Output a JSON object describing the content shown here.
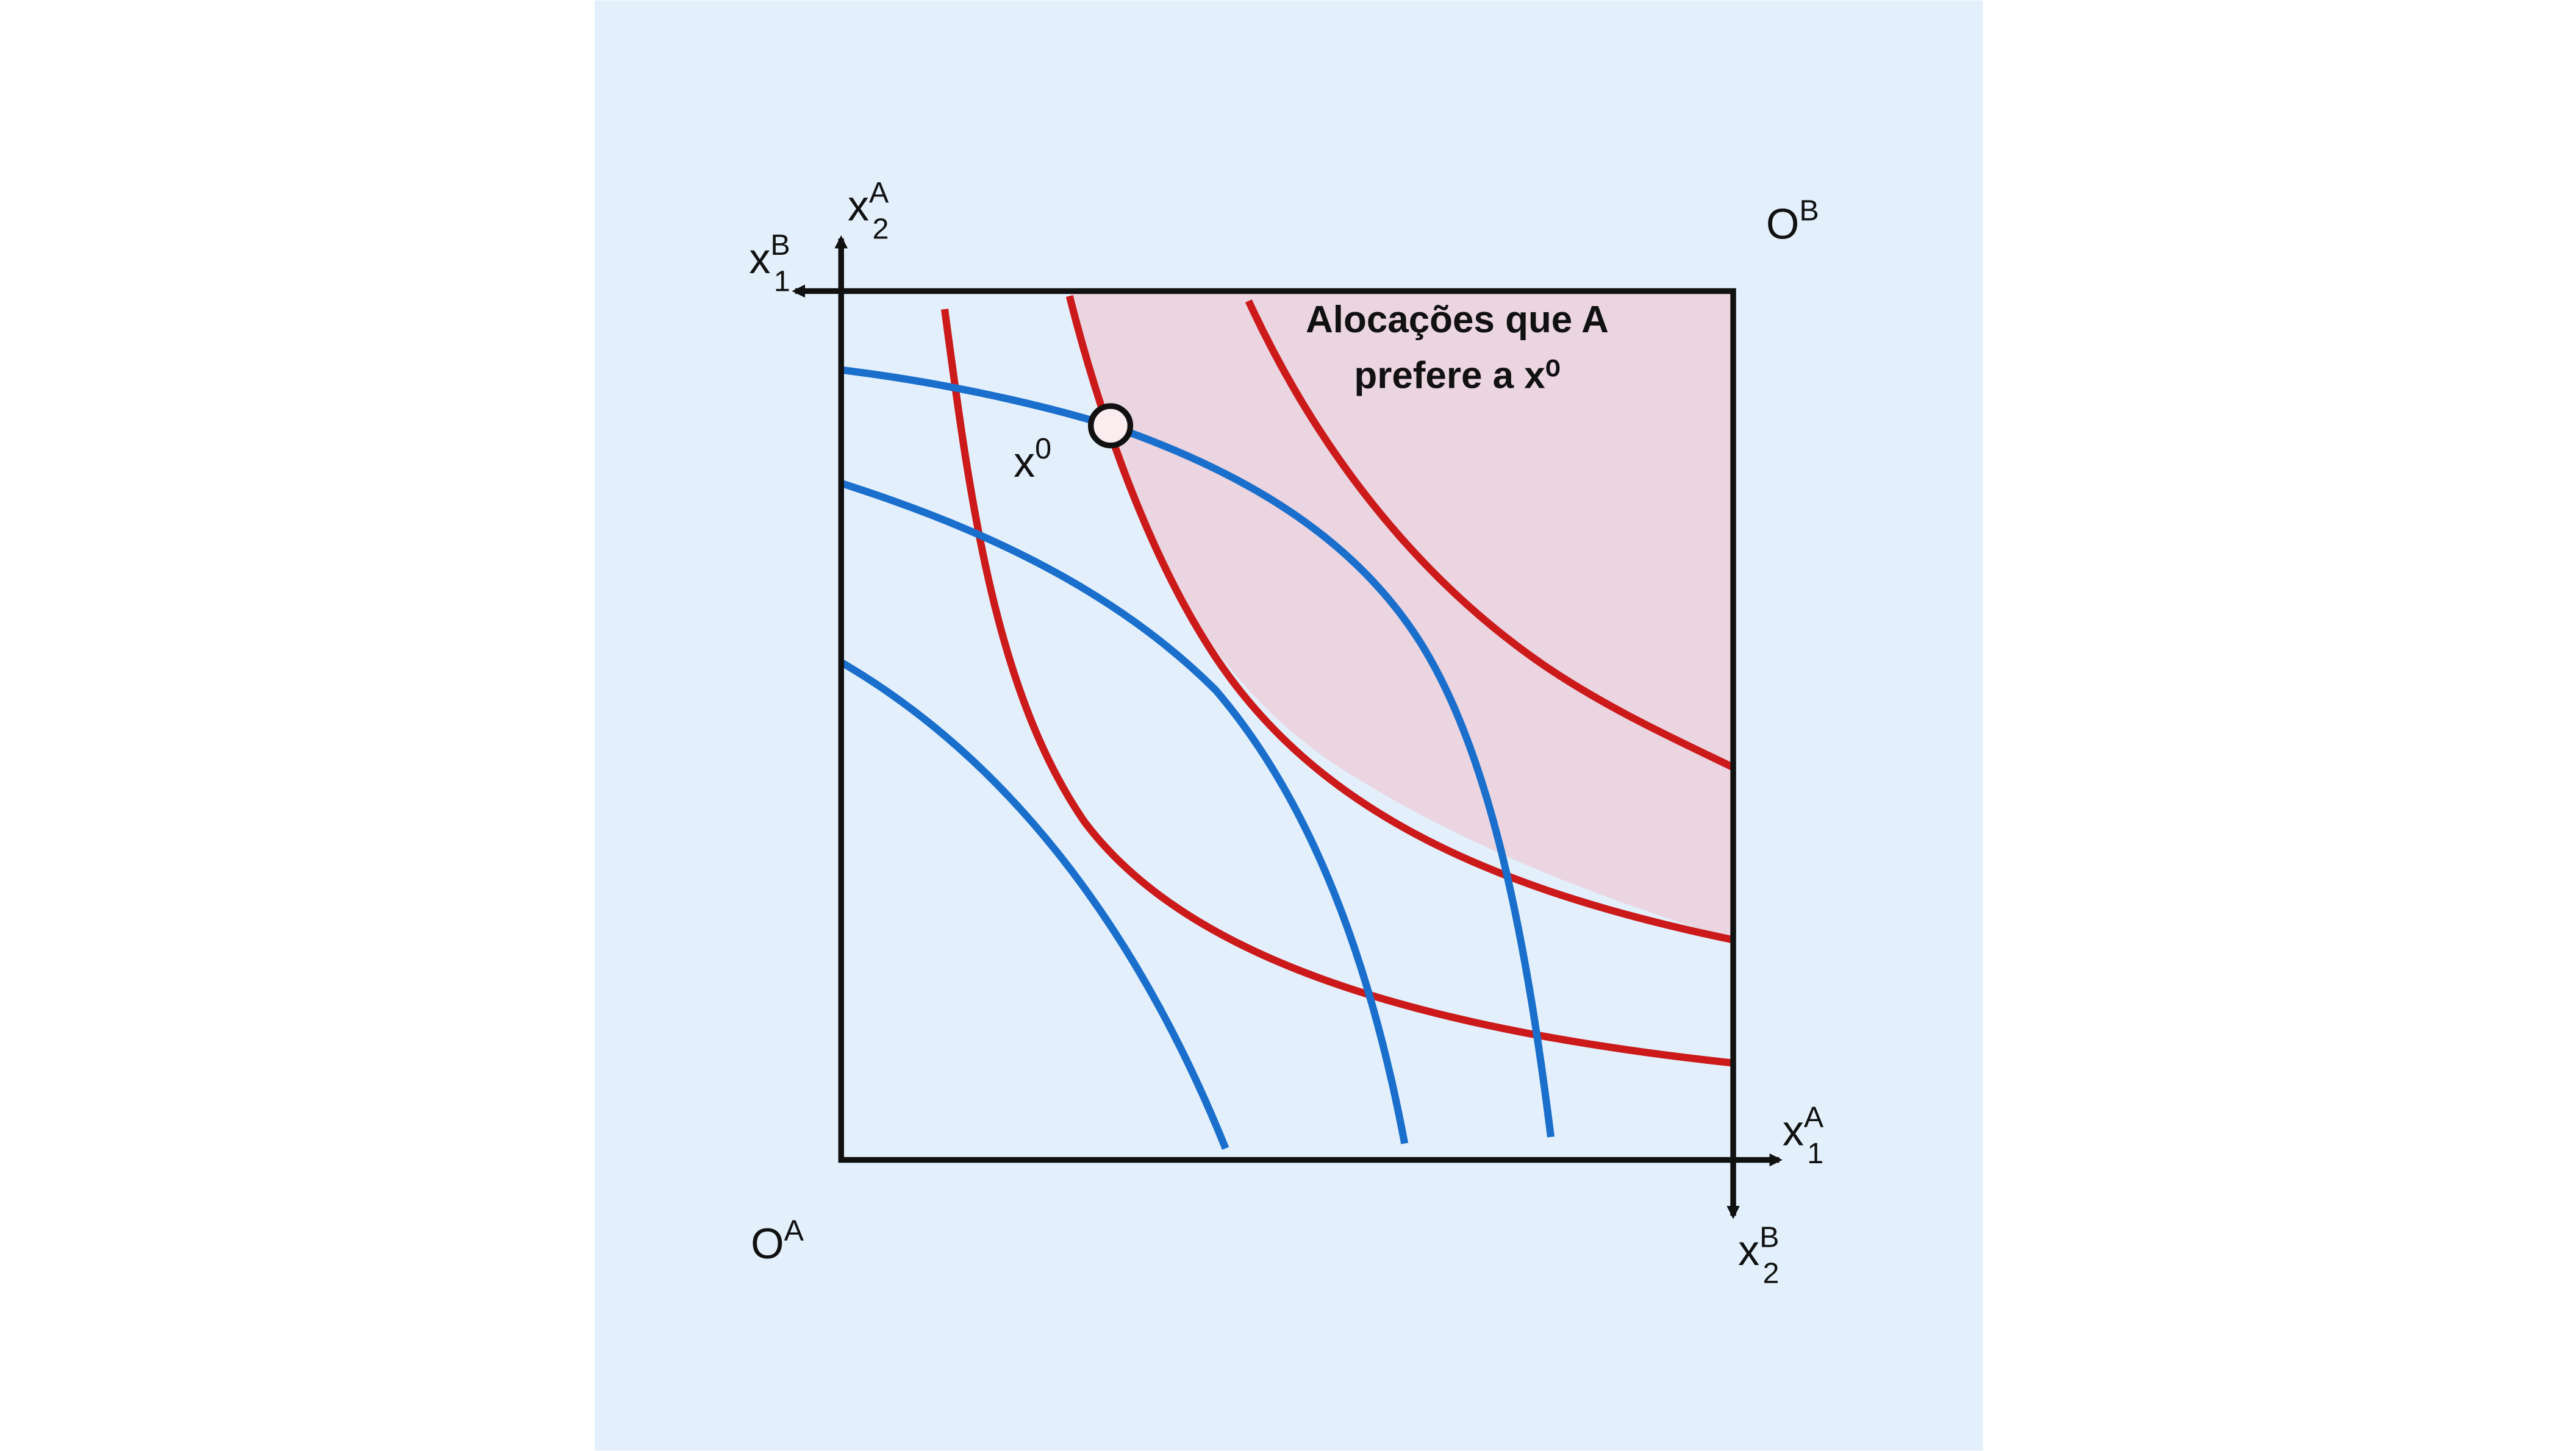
{
  "labels": {
    "x2A": {
      "base": "x",
      "sub": "2",
      "sup": "A"
    },
    "x1B": {
      "base": "x",
      "sub": "1",
      "sup": "B"
    },
    "OB": {
      "base": "O",
      "sup": "B"
    },
    "x1A": {
      "base": "x",
      "sub": "1",
      "sup": "A"
    },
    "OA": {
      "base": "O",
      "sup": "A"
    },
    "x2B": {
      "base": "x",
      "sub": "2",
      "sup": "B"
    },
    "x0": {
      "base": "x",
      "sup": "0"
    }
  },
  "annotation": {
    "lines": [
      "Alocações que A",
      "prefere a x⁰"
    ]
  }
}
